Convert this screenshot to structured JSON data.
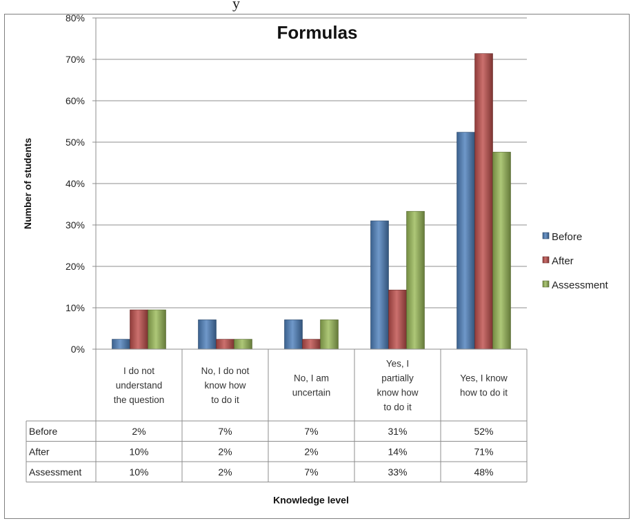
{
  "top_caption": "y",
  "chart_data": {
    "type": "bar",
    "title": "Formulas",
    "xlabel": "Knowledge level",
    "ylabel": "Number of students",
    "ylim": [
      0,
      80
    ],
    "yticks": [
      "0%",
      "10%",
      "20%",
      "30%",
      "40%",
      "50%",
      "60%",
      "70%",
      "80%"
    ],
    "grid": true,
    "legend_position": "right",
    "categories": [
      [
        "I do not",
        "understand",
        "the question"
      ],
      [
        "No, I do not",
        "know how",
        "to do it"
      ],
      [
        "No, I am",
        "uncertain"
      ],
      [
        "Yes, I",
        "partially",
        "know how",
        "to do it"
      ],
      [
        "Yes, I know",
        "how to do it"
      ]
    ],
    "series": [
      {
        "name": "Before",
        "color": "#4f81bd",
        "values": [
          2.4,
          7.1,
          7.1,
          31,
          52.4
        ],
        "labels": [
          "2%",
          "7%",
          "7%",
          "31%",
          "52%"
        ]
      },
      {
        "name": "After",
        "color": "#c0504d",
        "values": [
          9.5,
          2.4,
          2.4,
          14.3,
          71.4
        ],
        "labels": [
          "10%",
          "2%",
          "2%",
          "14%",
          "71%"
        ]
      },
      {
        "name": "Assessment",
        "color": "#9bbb59",
        "values": [
          9.5,
          2.4,
          7.1,
          33.3,
          47.6
        ],
        "labels": [
          "10%",
          "2%",
          "7%",
          "33%",
          "48%"
        ]
      }
    ]
  }
}
